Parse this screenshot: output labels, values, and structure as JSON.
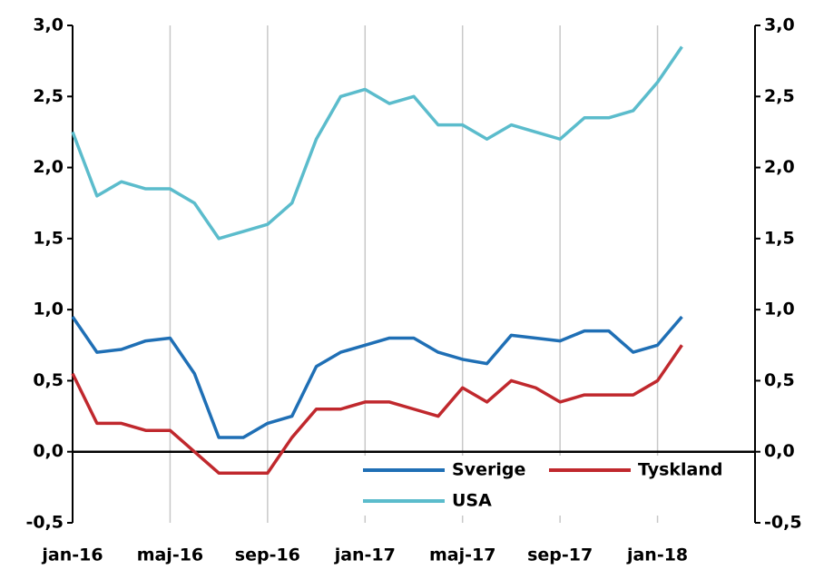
{
  "chart_data": {
    "type": "line",
    "x": [
      "2016-01",
      "2016-02",
      "2016-03",
      "2016-04",
      "2016-05",
      "2016-06",
      "2016-07",
      "2016-08",
      "2016-09",
      "2016-10",
      "2016-11",
      "2016-12",
      "2017-01",
      "2017-02",
      "2017-03",
      "2017-04",
      "2017-05",
      "2017-06",
      "2017-07",
      "2017-08",
      "2017-09",
      "2017-10",
      "2017-11",
      "2017-12",
      "2018-01",
      "2018-02"
    ],
    "series": [
      {
        "name": "Sverige",
        "color": "#1f6fb5",
        "values": [
          0.95,
          0.7,
          0.72,
          0.78,
          0.8,
          0.55,
          0.1,
          0.1,
          0.2,
          0.25,
          0.6,
          0.7,
          0.75,
          0.8,
          0.8,
          0.7,
          0.65,
          0.62,
          0.82,
          0.8,
          0.78,
          0.85,
          0.85,
          0.7,
          0.75,
          0.95
        ]
      },
      {
        "name": "Tyskland",
        "color": "#c0282d",
        "values": [
          0.55,
          0.2,
          0.2,
          0.15,
          0.15,
          0.0,
          -0.15,
          -0.15,
          -0.15,
          0.1,
          0.3,
          0.3,
          0.35,
          0.35,
          0.3,
          0.25,
          0.45,
          0.35,
          0.5,
          0.45,
          0.35,
          0.4,
          0.4,
          0.4,
          0.5,
          0.75
        ]
      },
      {
        "name": "USA",
        "color": "#5bbccc",
        "values": [
          2.25,
          1.8,
          1.9,
          1.85,
          1.85,
          1.75,
          1.5,
          1.55,
          1.6,
          1.75,
          2.2,
          2.5,
          2.55,
          2.45,
          2.5,
          2.3,
          2.3,
          2.2,
          2.3,
          2.25,
          2.2,
          2.35,
          2.35,
          2.4,
          2.6,
          2.85
        ]
      }
    ],
    "xlim": [
      "2016-01",
      "2018-05"
    ],
    "xticks": [
      {
        "value": "2016-01",
        "label": "jan-16"
      },
      {
        "value": "2016-05",
        "label": "maj-16"
      },
      {
        "value": "2016-09",
        "label": "sep-16"
      },
      {
        "value": "2017-01",
        "label": "jan-17"
      },
      {
        "value": "2017-05",
        "label": "maj-17"
      },
      {
        "value": "2017-09",
        "label": "sep-17"
      },
      {
        "value": "2018-01",
        "label": "jan-18"
      }
    ],
    "ylim": [
      -0.5,
      3.0
    ],
    "yticks": [
      {
        "value": -0.5,
        "label": "-0,5"
      },
      {
        "value": 0,
        "label": "0,0"
      },
      {
        "value": 0.5,
        "label": "0,5"
      },
      {
        "value": 1.0,
        "label": "1,0"
      },
      {
        "value": 1.5,
        "label": "1,5"
      },
      {
        "value": 2.0,
        "label": "2,0"
      },
      {
        "value": 2.5,
        "label": "2,5"
      },
      {
        "value": 3.0,
        "label": "3,0"
      }
    ],
    "y2lim": [
      -0.5,
      3.0
    ],
    "y2ticks": [
      {
        "value": -0.5,
        "label": "-0,5"
      },
      {
        "value": 0,
        "label": "0,0"
      },
      {
        "value": 0.5,
        "label": "0,5"
      },
      {
        "value": 1.0,
        "label": "1,0"
      },
      {
        "value": 1.5,
        "label": "1,5"
      },
      {
        "value": 2.0,
        "label": "2,0"
      },
      {
        "value": 2.5,
        "label": "2,5"
      },
      {
        "value": 3.0,
        "label": "3,0"
      }
    ],
    "grid": true,
    "legend": "lower right"
  }
}
